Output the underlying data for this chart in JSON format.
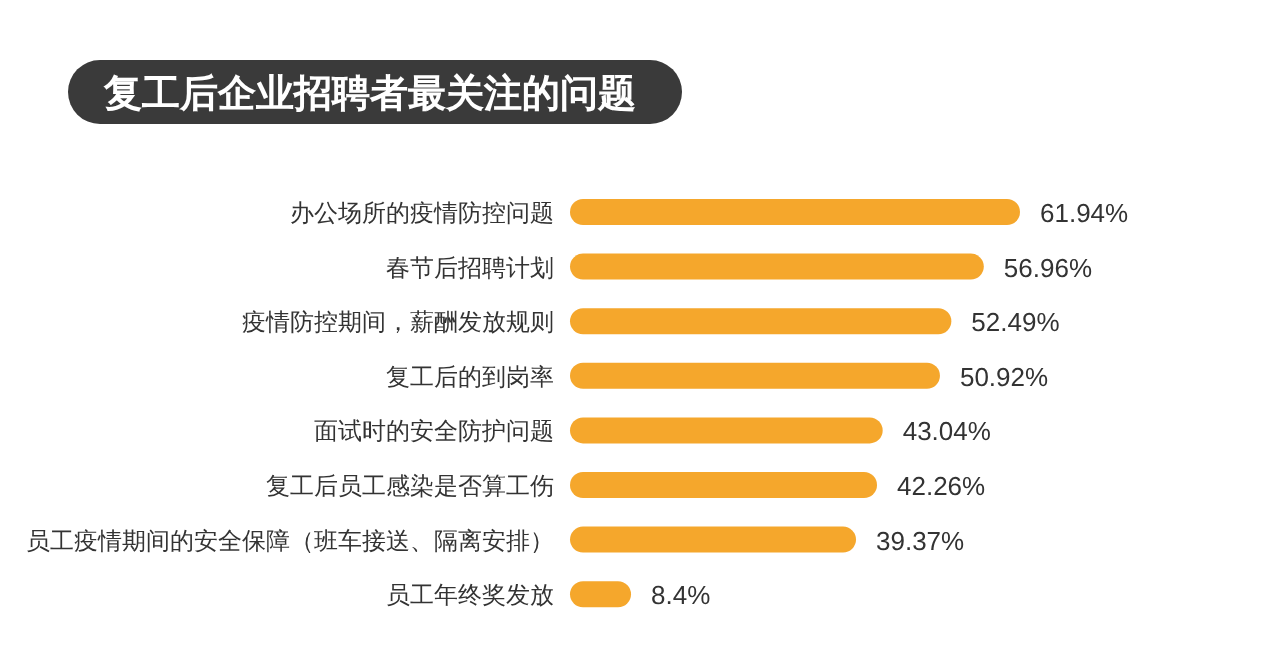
{
  "chart_data": {
    "type": "bar",
    "orientation": "horizontal",
    "title": "复工后企业招聘者最关注的问题",
    "categories": [
      "办公场所的疫情防控问题",
      "春节后招聘计划",
      "疫情防控期间，薪酬发放规则",
      "复工后的到岗率",
      "面试时的安全防护问题",
      "复工后员工感染是否算工伤",
      "员工疫情期间的安全保障（班车接送、隔离安排）",
      "员工年终奖发放"
    ],
    "values": [
      61.94,
      56.96,
      52.49,
      50.92,
      43.04,
      42.26,
      39.37,
      8.4
    ],
    "value_labels": [
      "61.94%",
      "56.96%",
      "52.49%",
      "50.92%",
      "43.04%",
      "42.26%",
      "39.37%",
      "8.4%"
    ],
    "color": "#f5a72c"
  }
}
